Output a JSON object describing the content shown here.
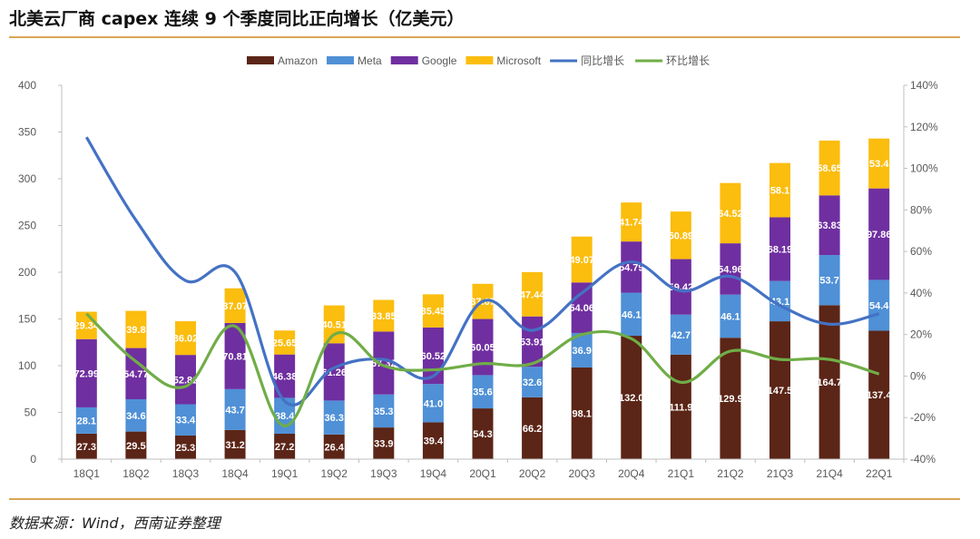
{
  "title": "北美云厂商 capex 连续 9 个季度同比正向增长（亿美元）",
  "source": "数据来源：Wind，西南证券整理",
  "chart_data": {
    "type": "bar",
    "stacked": true,
    "categories": [
      "18Q1",
      "18Q2",
      "18Q3",
      "18Q4",
      "19Q1",
      "19Q2",
      "19Q3",
      "19Q4",
      "20Q1",
      "20Q2",
      "20Q3",
      "20Q4",
      "21Q1",
      "21Q2",
      "21Q3",
      "21Q4",
      "22Q1"
    ],
    "ylim": [
      0,
      400
    ],
    "yticks": [
      "0",
      "50",
      "100",
      "150",
      "200",
      "250",
      "300",
      "350",
      "400"
    ],
    "y2lim": [
      -40,
      140
    ],
    "y2ticks": [
      "-40%",
      "-20%",
      "0%",
      "20%",
      "40%",
      "60%",
      "80%",
      "100%",
      "120%",
      "140%"
    ],
    "legend_position": "top",
    "grid": false,
    "series": [
      {
        "name": "Amazon",
        "color": "#5b2517",
        "values": [
          27.3,
          29.5,
          25.3,
          31.2,
          27.2,
          26.4,
          33.9,
          39.4,
          54.3,
          66.2,
          98.1,
          132.0,
          111.9,
          129.9,
          147.5,
          164.7,
          137.4
        ],
        "labels": [
          "27.3",
          "29.5",
          "25.3",
          "31.2",
          "27.2",
          "26.4",
          "33.9",
          "39.4",
          "54.3",
          "66.2",
          "98.1",
          "132.0",
          "111.9",
          "129.9",
          "147.5",
          "164.7",
          "137.4"
        ]
      },
      {
        "name": "Meta",
        "color": "#4f90d6",
        "values": [
          28.1,
          34.6,
          33.4,
          43.7,
          38.4,
          36.3,
          35.3,
          41.0,
          35.6,
          32.6,
          36.9,
          46.1,
          42.7,
          46.1,
          43.1,
          53.7,
          54.4
        ],
        "labels": [
          "28.1",
          "34.6",
          "33.4",
          "43.7",
          "38.4",
          "36.3",
          "35.3",
          "41.0",
          "35.6",
          "32.6",
          "36.9",
          "46.1",
          "42.7",
          "46.1",
          "43.1",
          "53.7",
          "54.4"
        ]
      },
      {
        "name": "Google",
        "color": "#6f2fa0",
        "values": [
          72.99,
          54.77,
          52.82,
          70.81,
          46.38,
          61.26,
          67.32,
          60.52,
          60.05,
          53.91,
          54.06,
          54.79,
          59.42,
          54.96,
          68.19,
          63.83,
          97.86
        ],
        "labels": [
          "72.99",
          "54.77",
          "52.82",
          "70.81",
          "46.38",
          "61.26",
          "67.32",
          "60.52",
          "60.05",
          "53.91",
          "54.06",
          "54.79",
          "59.42",
          "54.96",
          "68.19",
          "63.83",
          "97.86"
        ]
      },
      {
        "name": "Microsoft",
        "color": "#fbbd0e",
        "values": [
          29.34,
          39.8,
          36.02,
          37.07,
          25.65,
          40.51,
          33.85,
          35.45,
          37.67,
          47.44,
          49.07,
          41.74,
          50.89,
          64.52,
          58.1,
          58.65,
          53.4
        ],
        "labels": [
          "29.34",
          "39.8",
          "36.02",
          "37.07",
          "25.65",
          "40.51",
          "33.85",
          "35.45",
          "37.67",
          "47.44",
          "49.07",
          "41.74",
          "50.89",
          "64.52",
          "58.1",
          "58.65",
          "53.4"
        ]
      }
    ],
    "lines": [
      {
        "name": "同比增长",
        "axis": "right",
        "color": "#4472c4",
        "values": [
          115,
          75,
          46,
          50,
          -12,
          4,
          8,
          0,
          36,
          22,
          40,
          55,
          41,
          48,
          34,
          25,
          30
        ]
      },
      {
        "name": "环比增长",
        "axis": "right",
        "color": "#70ad47",
        "values": [
          30,
          7,
          -5,
          24,
          -24,
          20,
          5,
          3,
          6,
          6,
          20,
          18,
          -3,
          12,
          8,
          8,
          1
        ]
      }
    ]
  }
}
